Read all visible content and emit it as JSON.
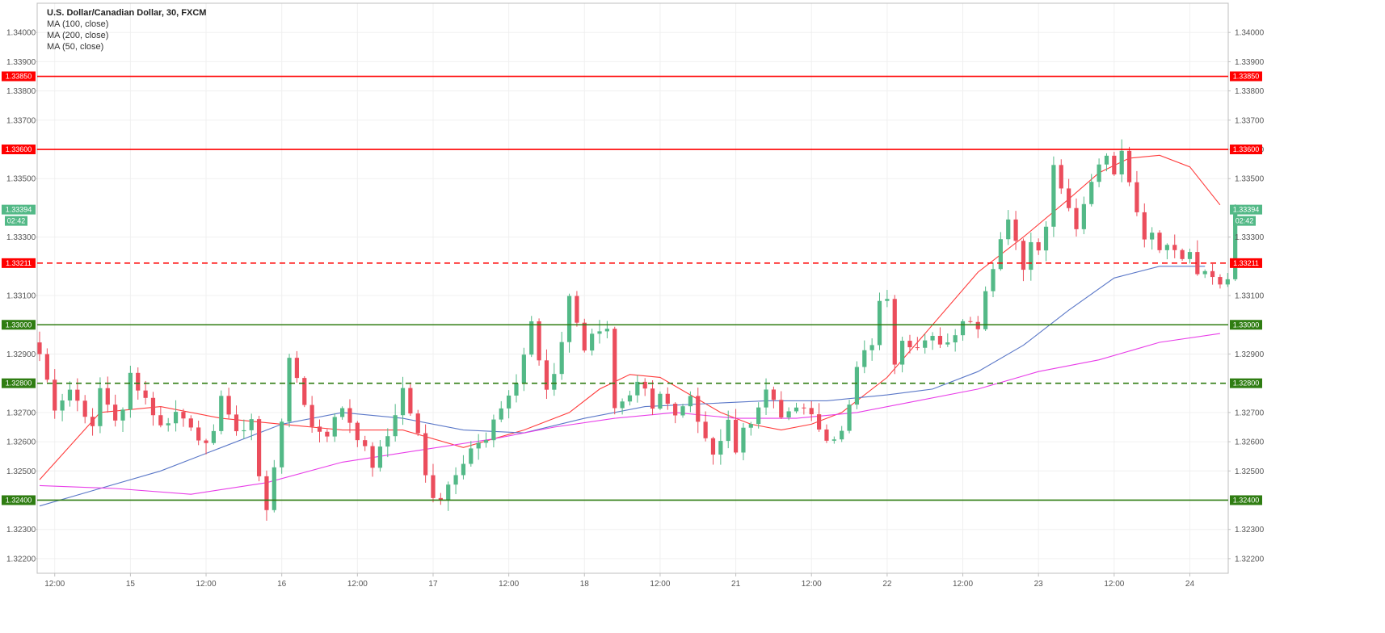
{
  "legend": {
    "title": "U.S. Dollar/Canadian Dollar, 30, FXCM",
    "ma1": "MA (100, close)",
    "ma2": "MA (200, close)",
    "ma3": "MA (50, close)"
  },
  "colors": {
    "bull": "#53b987",
    "bear": "#eb4d5c",
    "resistance": "#ff0000",
    "support": "#2f7d12",
    "ma50": "#ff3b3b",
    "ma100": "#5b78c8",
    "ma200": "#e83ee8",
    "grid": "#f0f0f0",
    "axis": "#bfbfbf"
  },
  "chart_data": {
    "type": "candlestick",
    "title": "U.S. Dollar/Canadian Dollar, 30, FXCM",
    "ylim": [
      1.3215,
      1.341
    ],
    "y_ticks": [
      "1.34000",
      "1.33900",
      "1.33800",
      "1.33700",
      "1.33600",
      "1.33500",
      "1.33300",
      "1.33100",
      "1.32900",
      "1.32700",
      "1.32600",
      "1.32500",
      "1.32300",
      "1.32200"
    ],
    "x_ticks": [
      {
        "label": "12:00",
        "t": 2
      },
      {
        "label": "15",
        "t": 12
      },
      {
        "label": "12:00",
        "t": 22
      },
      {
        "label": "16",
        "t": 32
      },
      {
        "label": "12:00",
        "t": 42
      },
      {
        "label": "17",
        "t": 52
      },
      {
        "label": "12:00",
        "t": 62
      },
      {
        "label": "18",
        "t": 72
      },
      {
        "label": "12:00",
        "t": 82
      },
      {
        "label": "21",
        "t": 92
      },
      {
        "label": "12:00",
        "t": 102
      },
      {
        "label": "22",
        "t": 112
      },
      {
        "label": "12:00",
        "t": 122
      },
      {
        "label": "23",
        "t": 132
      },
      {
        "label": "12:00",
        "t": 142
      },
      {
        "label": "24",
        "t": 152
      }
    ],
    "time_range": [
      0,
      155
    ],
    "levels": [
      {
        "value": 1.3385,
        "label": "1.33850",
        "kind": "resistance",
        "style": "solid"
      },
      {
        "value": 1.336,
        "label": "1.33600",
        "kind": "resistance",
        "style": "solid"
      },
      {
        "value": 1.33211,
        "label": "1.33211",
        "kind": "resistance",
        "style": "dashed"
      },
      {
        "value": 1.33,
        "label": "1.33000",
        "kind": "support",
        "style": "solid"
      },
      {
        "value": 1.328,
        "label": "1.32800",
        "kind": "support",
        "style": "dashed"
      },
      {
        "value": 1.324,
        "label": "1.32400",
        "kind": "support",
        "style": "solid"
      }
    ],
    "last_price": {
      "value": 1.33394,
      "label": "1.33394",
      "countdown": "02:42"
    },
    "anchors": [
      [
        0,
        1.329
      ],
      [
        2,
        1.3272
      ],
      [
        4,
        1.3278
      ],
      [
        6,
        1.327
      ],
      [
        7,
        1.3264
      ],
      [
        8,
        1.3278
      ],
      [
        10,
        1.3268
      ],
      [
        11,
        1.327
      ],
      [
        12,
        1.3283
      ],
      [
        14,
        1.3275
      ],
      [
        16,
        1.3265
      ],
      [
        18,
        1.327
      ],
      [
        20,
        1.3266
      ],
      [
        22,
        1.3258
      ],
      [
        23,
        1.3262
      ],
      [
        24,
        1.3277
      ],
      [
        26,
        1.3262
      ],
      [
        28,
        1.3268
      ],
      [
        29,
        1.3248
      ],
      [
        30,
        1.3236
      ],
      [
        31,
        1.3252
      ],
      [
        32,
        1.3268
      ],
      [
        33,
        1.3287
      ],
      [
        34,
        1.3282
      ],
      [
        36,
        1.3265
      ],
      [
        38,
        1.3263
      ],
      [
        40,
        1.3272
      ],
      [
        42,
        1.3262
      ],
      [
        44,
        1.3252
      ],
      [
        46,
        1.3262
      ],
      [
        48,
        1.3278
      ],
      [
        50,
        1.3262
      ],
      [
        51,
        1.3248
      ],
      [
        52,
        1.3242
      ],
      [
        53,
        1.3241
      ],
      [
        55,
        1.325
      ],
      [
        57,
        1.3258
      ],
      [
        59,
        1.326
      ],
      [
        61,
        1.3272
      ],
      [
        63,
        1.328
      ],
      [
        64,
        1.329
      ],
      [
        65,
        1.33
      ],
      [
        66,
        1.3288
      ],
      [
        67,
        1.3278
      ],
      [
        68,
        1.3284
      ],
      [
        69,
        1.3295
      ],
      [
        70,
        1.3309
      ],
      [
        71,
        1.3302
      ],
      [
        72,
        1.3292
      ],
      [
        73,
        1.3296
      ],
      [
        75,
        1.3297
      ],
      [
        76,
        1.327
      ],
      [
        78,
        1.3275
      ],
      [
        79,
        1.328
      ],
      [
        80,
        1.3278
      ],
      [
        81,
        1.3273
      ],
      [
        82,
        1.3277
      ],
      [
        84,
        1.327
      ],
      [
        86,
        1.3275
      ],
      [
        87,
        1.3266
      ],
      [
        88,
        1.3262
      ],
      [
        89,
        1.3254
      ],
      [
        90,
        1.3262
      ],
      [
        91,
        1.3268
      ],
      [
        92,
        1.3256
      ],
      [
        93,
        1.3265
      ],
      [
        95,
        1.327
      ],
      [
        96,
        1.3278
      ],
      [
        98,
        1.3268
      ],
      [
        100,
        1.3273
      ],
      [
        102,
        1.3268
      ],
      [
        104,
        1.3262
      ],
      [
        105,
        1.3262
      ],
      [
        106,
        1.3263
      ],
      [
        107,
        1.3272
      ],
      [
        108,
        1.3285
      ],
      [
        109,
        1.329
      ],
      [
        110,
        1.3294
      ],
      [
        111,
        1.3307
      ],
      [
        112,
        1.331
      ],
      [
        113,
        1.3288
      ],
      [
        114,
        1.3296
      ],
      [
        116,
        1.3292
      ],
      [
        118,
        1.3295
      ],
      [
        120,
        1.3294
      ],
      [
        122,
        1.3302
      ],
      [
        124,
        1.33
      ],
      [
        125,
        1.3312
      ],
      [
        126,
        1.332
      ],
      [
        127,
        1.333
      ],
      [
        128,
        1.3335
      ],
      [
        129,
        1.333
      ],
      [
        130,
        1.332
      ],
      [
        131,
        1.333
      ],
      [
        132,
        1.3325
      ],
      [
        133,
        1.3335
      ],
      [
        134,
        1.3355
      ],
      [
        135,
        1.3348
      ],
      [
        136,
        1.334
      ],
      [
        137,
        1.3333
      ],
      [
        138,
        1.3343
      ],
      [
        139,
        1.3348
      ],
      [
        140,
        1.3355
      ],
      [
        141,
        1.3357
      ],
      [
        142,
        1.3352
      ],
      [
        143,
        1.3358
      ],
      [
        144,
        1.3348
      ],
      [
        145,
        1.3338
      ],
      [
        146,
        1.333
      ],
      [
        147,
        1.3332
      ],
      [
        148,
        1.3327
      ],
      [
        149,
        1.3326
      ],
      [
        150,
        1.3327
      ],
      [
        151,
        1.3324
      ],
      [
        152,
        1.3326
      ],
      [
        153,
        1.3318
      ],
      [
        154,
        1.332
      ],
      [
        155,
        1.3316
      ],
      [
        156,
        1.3314
      ],
      [
        157,
        1.3316
      ],
      [
        158,
        1.3339
      ]
    ],
    "series": [
      {
        "name": "MA (50, close)",
        "color": "#ff3b3b",
        "points": [
          [
            0,
            1.3247
          ],
          [
            8,
            1.327
          ],
          [
            16,
            1.3272
          ],
          [
            24,
            1.3268
          ],
          [
            32,
            1.3266
          ],
          [
            40,
            1.3264
          ],
          [
            48,
            1.3264
          ],
          [
            56,
            1.3258
          ],
          [
            64,
            1.3264
          ],
          [
            70,
            1.327
          ],
          [
            74,
            1.3278
          ],
          [
            78,
            1.3283
          ],
          [
            82,
            1.3282
          ],
          [
            86,
            1.3276
          ],
          [
            90,
            1.327
          ],
          [
            94,
            1.3266
          ],
          [
            98,
            1.3264
          ],
          [
            102,
            1.3266
          ],
          [
            106,
            1.327
          ],
          [
            112,
            1.3282
          ],
          [
            118,
            1.33
          ],
          [
            124,
            1.3318
          ],
          [
            130,
            1.333
          ],
          [
            136,
            1.3343
          ],
          [
            140,
            1.3352
          ],
          [
            144,
            1.3357
          ],
          [
            148,
            1.3358
          ],
          [
            152,
            1.3354
          ],
          [
            156,
            1.3341
          ]
        ]
      },
      {
        "name": "MA (100, close)",
        "color": "#5b78c8",
        "points": [
          [
            0,
            1.3238
          ],
          [
            8,
            1.3244
          ],
          [
            16,
            1.325
          ],
          [
            24,
            1.3258
          ],
          [
            32,
            1.3266
          ],
          [
            40,
            1.327
          ],
          [
            48,
            1.3268
          ],
          [
            56,
            1.3264
          ],
          [
            64,
            1.3263
          ],
          [
            72,
            1.3268
          ],
          [
            80,
            1.3272
          ],
          [
            88,
            1.3273
          ],
          [
            96,
            1.3274
          ],
          [
            104,
            1.3274
          ],
          [
            112,
            1.3276
          ],
          [
            118,
            1.3278
          ],
          [
            124,
            1.3284
          ],
          [
            130,
            1.3293
          ],
          [
            136,
            1.3305
          ],
          [
            142,
            1.3316
          ],
          [
            148,
            1.332
          ],
          [
            154,
            1.332
          ]
        ]
      },
      {
        "name": "MA (200, close)",
        "color": "#e83ee8",
        "points": [
          [
            0,
            1.3245
          ],
          [
            10,
            1.3244
          ],
          [
            20,
            1.3242
          ],
          [
            30,
            1.3246
          ],
          [
            40,
            1.3253
          ],
          [
            50,
            1.3257
          ],
          [
            60,
            1.3261
          ],
          [
            68,
            1.3265
          ],
          [
            76,
            1.3268
          ],
          [
            84,
            1.327
          ],
          [
            92,
            1.3268
          ],
          [
            100,
            1.3268
          ],
          [
            108,
            1.327
          ],
          [
            116,
            1.3274
          ],
          [
            124,
            1.3278
          ],
          [
            132,
            1.3284
          ],
          [
            140,
            1.3288
          ],
          [
            148,
            1.3294
          ],
          [
            156,
            1.3297
          ]
        ]
      }
    ]
  }
}
